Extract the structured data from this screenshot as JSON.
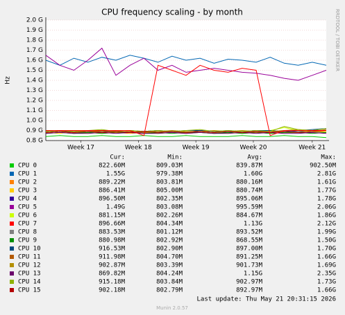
{
  "chart_data": {
    "type": "line",
    "title": "CPU frequency scaling - by month",
    "ylabel": "Hz",
    "watermark": "RRDTOOL / TOBI OETIKER",
    "last_update": "Last update: Thu May 21 20:31:15 2026",
    "footer": "Munin 2.0.57",
    "columns": [
      "Cur:",
      "Min:",
      "Avg:",
      "Max:"
    ],
    "x": [
      0,
      1,
      2,
      3,
      4,
      5,
      6,
      7,
      8,
      9,
      10,
      11,
      12,
      13,
      14,
      15,
      16,
      17,
      18,
      19,
      20
    ],
    "xlim": [
      0,
      20
    ],
    "xticks": [
      {
        "value": 2.5,
        "label": "Week 17"
      },
      {
        "value": 6.6,
        "label": "Week 18"
      },
      {
        "value": 10.7,
        "label": "Week 19"
      },
      {
        "value": 14.8,
        "label": "Week 20"
      },
      {
        "value": 19.0,
        "label": "Week 21"
      }
    ],
    "ylim": [
      0.8,
      2.0
    ],
    "yticks": [
      {
        "value": 0.8,
        "label": "0.8 G"
      },
      {
        "value": 0.9,
        "label": "0.9 G"
      },
      {
        "value": 1.0,
        "label": "1.0 G"
      },
      {
        "value": 1.1,
        "label": "1.1 G"
      },
      {
        "value": 1.2,
        "label": "1.2 G"
      },
      {
        "value": 1.3,
        "label": "1.3 G"
      },
      {
        "value": 1.4,
        "label": "1.4 G"
      },
      {
        "value": 1.5,
        "label": "1.5 G"
      },
      {
        "value": 1.6,
        "label": "1.6 G"
      },
      {
        "value": 1.7,
        "label": "1.7 G"
      },
      {
        "value": 1.8,
        "label": "1.8 G"
      },
      {
        "value": 1.9,
        "label": "1.9 G"
      },
      {
        "value": 2.0,
        "label": "2.0 G"
      }
    ],
    "grid": true,
    "series": [
      {
        "name": "CPU 0",
        "color": "#00cc00",
        "stats": [
          "822.60M",
          "809.03M",
          "839.87M",
          "902.50M"
        ],
        "values": [
          0.84,
          0.85,
          0.84,
          0.84,
          0.85,
          0.84,
          0.84,
          0.85,
          0.84,
          0.84,
          0.85,
          0.84,
          0.84,
          0.84,
          0.85,
          0.84,
          0.84,
          0.85,
          0.84,
          0.84,
          0.83
        ]
      },
      {
        "name": "CPU 1",
        "color": "#0066b3",
        "stats": [
          "1.55G",
          "979.38M",
          "1.60G",
          "2.81G"
        ],
        "values": [
          1.6,
          1.55,
          1.62,
          1.58,
          1.63,
          1.6,
          1.65,
          1.62,
          1.58,
          1.64,
          1.6,
          1.62,
          1.57,
          1.61,
          1.6,
          1.58,
          1.63,
          1.57,
          1.55,
          1.58,
          1.55
        ]
      },
      {
        "name": "CPU 2",
        "color": "#ff8000",
        "stats": [
          "889.22M",
          "803.81M",
          "880.16M",
          "1.61G"
        ],
        "values": [
          0.88,
          0.89,
          0.87,
          0.88,
          0.89,
          0.88,
          0.87,
          0.88,
          0.89,
          0.88,
          0.87,
          0.88,
          0.88,
          0.89,
          0.87,
          0.88,
          0.89,
          0.88,
          0.88,
          0.89,
          0.89
        ]
      },
      {
        "name": "CPU 3",
        "color": "#ffcc00",
        "stats": [
          "886.41M",
          "805.00M",
          "880.74M",
          "1.77G"
        ],
        "values": [
          0.88,
          0.87,
          0.89,
          0.88,
          0.87,
          0.88,
          0.89,
          0.88,
          0.87,
          0.88,
          0.89,
          0.88,
          0.87,
          0.88,
          0.88,
          0.89,
          0.87,
          0.88,
          0.89,
          0.88,
          0.89
        ]
      },
      {
        "name": "CPU 4",
        "color": "#330099",
        "stats": [
          "896.50M",
          "802.35M",
          "895.06M",
          "1.78G"
        ],
        "values": [
          0.89,
          0.9,
          0.88,
          0.89,
          0.9,
          0.89,
          0.88,
          0.89,
          0.9,
          0.89,
          0.88,
          0.9,
          0.89,
          0.88,
          0.89,
          0.9,
          0.89,
          0.9,
          0.89,
          0.9,
          0.9
        ]
      },
      {
        "name": "CPU 5",
        "color": "#990099",
        "stats": [
          "1.49G",
          "803.08M",
          "995.59M",
          "2.06G"
        ],
        "values": [
          1.65,
          1.55,
          1.5,
          1.6,
          1.72,
          1.45,
          1.55,
          1.62,
          1.5,
          1.55,
          1.48,
          1.5,
          1.52,
          1.5,
          1.48,
          1.47,
          1.45,
          1.42,
          1.4,
          1.45,
          1.5
        ]
      },
      {
        "name": "CPU 6",
        "color": "#ccff00",
        "stats": [
          "881.15M",
          "802.26M",
          "884.67M",
          "1.86G"
        ],
        "values": [
          0.88,
          0.89,
          0.88,
          0.87,
          0.89,
          0.88,
          0.88,
          0.89,
          0.87,
          0.88,
          0.89,
          0.88,
          0.88,
          0.87,
          0.89,
          0.88,
          0.9,
          0.93,
          0.9,
          0.89,
          0.88
        ]
      },
      {
        "name": "CPU 7",
        "color": "#ff0000",
        "stats": [
          "896.66M",
          "804.34M",
          "1.13G",
          "2.12G"
        ],
        "values": [
          0.9,
          0.9,
          0.9,
          0.9,
          0.9,
          0.9,
          0.9,
          0.85,
          1.55,
          1.5,
          1.45,
          1.55,
          1.5,
          1.48,
          1.52,
          1.5,
          0.85,
          0.9,
          0.9,
          0.9,
          0.9
        ]
      },
      {
        "name": "CPU 8",
        "color": "#808080",
        "stats": [
          "883.53M",
          "801.12M",
          "893.52M",
          "1.99G"
        ],
        "values": [
          0.88,
          0.89,
          0.88,
          0.88,
          0.89,
          0.89,
          0.88,
          0.88,
          0.89,
          0.88,
          0.88,
          0.89,
          0.88,
          0.89,
          0.88,
          0.88,
          0.89,
          0.88,
          0.89,
          0.88,
          0.88
        ]
      },
      {
        "name": "CPU 9",
        "color": "#008f00",
        "stats": [
          "880.98M",
          "802.92M",
          "868.55M",
          "1.50G"
        ],
        "values": [
          0.87,
          0.88,
          0.87,
          0.88,
          0.87,
          0.88,
          0.88,
          0.87,
          0.88,
          0.87,
          0.88,
          0.88,
          0.87,
          0.88,
          0.87,
          0.88,
          0.87,
          0.88,
          0.88,
          0.87,
          0.88
        ]
      },
      {
        "name": "CPU 10",
        "color": "#00487d",
        "stats": [
          "916.53M",
          "802.90M",
          "897.00M",
          "1.70G"
        ],
        "values": [
          0.89,
          0.9,
          0.89,
          0.9,
          0.89,
          0.9,
          0.9,
          0.89,
          0.9,
          0.89,
          0.9,
          0.9,
          0.89,
          0.9,
          0.89,
          0.9,
          0.9,
          0.89,
          0.9,
          0.91,
          0.92
        ]
      },
      {
        "name": "CPU 11",
        "color": "#b35a00",
        "stats": [
          "911.98M",
          "804.70M",
          "891.25M",
          "1.66G"
        ],
        "values": [
          0.88,
          0.89,
          0.88,
          0.89,
          0.89,
          0.88,
          0.89,
          0.88,
          0.89,
          0.89,
          0.88,
          0.89,
          0.88,
          0.89,
          0.89,
          0.88,
          0.89,
          0.89,
          0.88,
          0.89,
          0.91
        ]
      },
      {
        "name": "CPU 12",
        "color": "#b38f00",
        "stats": [
          "902.87M",
          "803.39M",
          "901.73M",
          "1.69G"
        ],
        "values": [
          0.89,
          0.9,
          0.89,
          0.89,
          0.9,
          0.89,
          0.9,
          0.89,
          0.89,
          0.9,
          0.89,
          0.89,
          0.9,
          0.89,
          0.9,
          0.89,
          0.89,
          0.9,
          0.91,
          0.9,
          0.9
        ]
      },
      {
        "name": "CPU 13",
        "color": "#6b006b",
        "stats": [
          "869.82M",
          "804.24M",
          "1.15G",
          "2.35G"
        ],
        "values": [
          0.87,
          0.88,
          0.87,
          0.87,
          0.88,
          0.87,
          0.88,
          0.87,
          0.87,
          0.88,
          0.87,
          0.88,
          0.87,
          0.87,
          0.88,
          0.87,
          0.88,
          0.87,
          0.87,
          0.88,
          0.87
        ]
      },
      {
        "name": "CPU 14",
        "color": "#8fb300",
        "stats": [
          "915.18M",
          "803.84M",
          "902.97M",
          "1.73G"
        ],
        "values": [
          0.89,
          0.9,
          0.89,
          0.9,
          0.91,
          0.89,
          0.9,
          0.89,
          0.9,
          0.89,
          0.9,
          0.91,
          0.89,
          0.9,
          0.89,
          0.9,
          0.89,
          0.94,
          0.91,
          0.9,
          0.92
        ]
      },
      {
        "name": "CPU 15",
        "color": "#b30000",
        "stats": [
          "902.18M",
          "802.79M",
          "892.97M",
          "1.66G"
        ],
        "values": [
          0.88,
          0.89,
          0.88,
          0.89,
          0.88,
          0.89,
          0.88,
          0.89,
          0.88,
          0.89,
          0.88,
          0.89,
          0.88,
          0.89,
          0.88,
          0.89,
          0.88,
          0.89,
          0.88,
          0.89,
          0.9
        ]
      }
    ]
  }
}
